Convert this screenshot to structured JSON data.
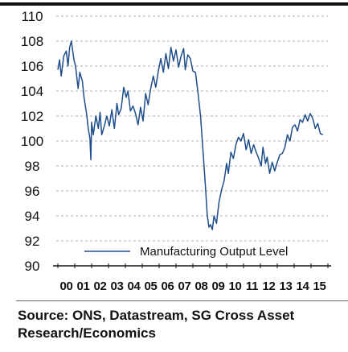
{
  "chart_data": {
    "type": "line",
    "title": "",
    "xlabel": "",
    "ylabel": "",
    "ylim": [
      90,
      110
    ],
    "yticks": [
      90,
      92,
      94,
      96,
      98,
      100,
      102,
      104,
      106,
      108,
      110
    ],
    "x_tick_labels": [
      "00",
      "01",
      "02",
      "03",
      "04",
      "05",
      "06",
      "07",
      "08",
      "09",
      "10",
      "11",
      "12",
      "13",
      "14",
      "15"
    ],
    "xlim": [
      2000,
      2016
    ],
    "grid": "horizontal",
    "legend_position": "bottom-right",
    "line_color": "#1f4e8c",
    "series": [
      {
        "name": "Manufacturing Output Level",
        "x": [
          2000.0,
          2000.1,
          2000.2,
          2000.35,
          2000.5,
          2000.6,
          2000.7,
          2000.8,
          2000.95,
          2001.05,
          2001.2,
          2001.3,
          2001.45,
          2001.55,
          2001.7,
          2001.8,
          2001.9,
          2001.95,
          2002.0,
          2002.1,
          2002.25,
          2002.4,
          2002.5,
          2002.6,
          2002.75,
          2002.9,
          2003.05,
          2003.2,
          2003.35,
          2003.5,
          2003.6,
          2003.75,
          2003.9,
          2004.05,
          2004.15,
          2004.3,
          2004.45,
          2004.6,
          2004.75,
          2004.9,
          2005.05,
          2005.2,
          2005.35,
          2005.5,
          2005.65,
          2005.8,
          2005.95,
          2006.1,
          2006.25,
          2006.4,
          2006.55,
          2006.7,
          2006.85,
          2007.0,
          2007.15,
          2007.3,
          2007.45,
          2007.55,
          2007.7,
          2007.85,
          2008.0,
          2008.15,
          2008.3,
          2008.45,
          2008.6,
          2008.75,
          2008.85,
          2008.95,
          2009.05,
          2009.15,
          2009.25,
          2009.4,
          2009.55,
          2009.7,
          2009.85,
          2010.0,
          2010.1,
          2010.25,
          2010.4,
          2010.55,
          2010.7,
          2010.85,
          2011.0,
          2011.15,
          2011.3,
          2011.45,
          2011.6,
          2011.75,
          2011.9,
          2012.05,
          2012.15,
          2012.3,
          2012.4,
          2012.55,
          2012.7,
          2012.85,
          2013.0,
          2013.15,
          2013.3,
          2013.45,
          2013.6,
          2013.75,
          2013.9,
          2014.05,
          2014.2,
          2014.35,
          2014.5,
          2014.65,
          2014.8,
          2014.95,
          2015.1,
          2015.25,
          2015.4,
          2015.55,
          2015.7
        ],
        "values": [
          105.7,
          106.5,
          105.2,
          106.8,
          107.2,
          106.0,
          107.5,
          108.0,
          106.5,
          106.0,
          104.2,
          105.5,
          104.8,
          103.5,
          102.2,
          101.0,
          100.2,
          98.5,
          101.5,
          100.5,
          102.0,
          101.0,
          102.3,
          100.5,
          101.2,
          102.0,
          101.2,
          102.5,
          101.0,
          103.0,
          102.1,
          102.6,
          104.3,
          103.5,
          104.0,
          102.4,
          102.8,
          102.2,
          101.3,
          102.7,
          101.6,
          103.8,
          102.9,
          104.2,
          105.2,
          104.3,
          105.6,
          106.6,
          105.5,
          107.0,
          105.8,
          107.5,
          106.4,
          107.3,
          105.9,
          106.8,
          107.4,
          105.7,
          106.9,
          106.6,
          105.6,
          105.5,
          103.9,
          102.0,
          99.2,
          96.2,
          94.1,
          93.1,
          93.3,
          92.9,
          94.0,
          93.4,
          95.1,
          96.1,
          96.8,
          98.2,
          97.4,
          99.1,
          98.6,
          99.7,
          100.3,
          100.0,
          100.6,
          99.3,
          100.1,
          99.0,
          99.7,
          99.1,
          98.6,
          98.0,
          99.5,
          98.2,
          98.7,
          97.4,
          98.3,
          97.6,
          98.3,
          98.9,
          99.0,
          99.5,
          100.5,
          100.0,
          101.1,
          101.3,
          100.8,
          101.7,
          101.5,
          102.1,
          101.6,
          102.2,
          101.8,
          101.0,
          101.4,
          100.6,
          100.5
        ]
      }
    ]
  },
  "source_note": "Source: ONS, Datastream, SG Cross Asset Research/Economics"
}
